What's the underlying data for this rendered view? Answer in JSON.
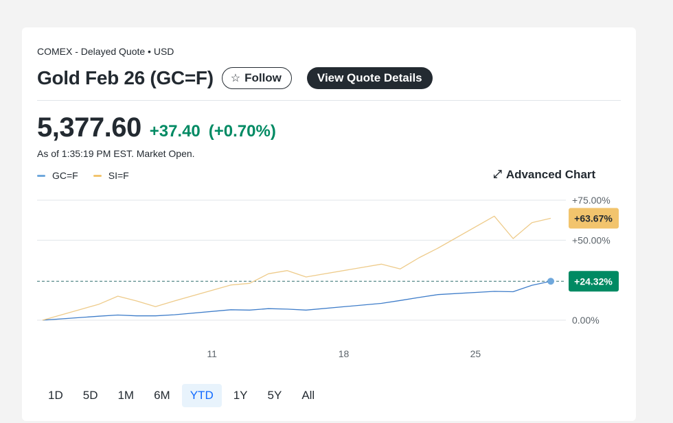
{
  "header": {
    "exchange": "COMEX - Delayed Quote • USD",
    "title": "Gold Feb 26 (GC=F)",
    "follow_label": "Follow",
    "quote_details_label": "View Quote Details"
  },
  "quote": {
    "price": "5,377.60",
    "change": "+37.40",
    "change_pct": "(+0.70%)",
    "as_of": "As of 1:35:19 PM EST. Market Open."
  },
  "advanced_chart_label": "Advanced Chart",
  "ranges": [
    {
      "label": "1D",
      "active": false
    },
    {
      "label": "5D",
      "active": false
    },
    {
      "label": "1M",
      "active": false
    },
    {
      "label": "6M",
      "active": false
    },
    {
      "label": "YTD",
      "active": true
    },
    {
      "label": "1Y",
      "active": false
    },
    {
      "label": "5Y",
      "active": false
    },
    {
      "label": "All",
      "active": false
    }
  ],
  "colors": {
    "gc": "#6fa8dc",
    "gc_line": "#3d7cc9",
    "si": "#f2c46d",
    "si_line": "#eecb8a",
    "positive": "#008a63"
  },
  "chart_data": {
    "type": "line",
    "x": [
      "2026-01-02",
      "2026-01-05",
      "2026-01-06",
      "2026-01-07",
      "2026-01-08",
      "2026-01-09",
      "2026-01-12",
      "2026-01-13",
      "2026-01-14",
      "2026-01-15",
      "2026-01-16",
      "2026-01-20",
      "2026-01-21",
      "2026-01-22",
      "2026-01-23",
      "2026-01-26",
      "2026-01-27",
      "2026-01-28",
      "2026-01-29"
    ],
    "series": [
      {
        "name": "GC=F",
        "values": [
          0.0,
          2.5,
          3.2,
          2.7,
          2.7,
          3.4,
          6.5,
          6.3,
          7.2,
          6.9,
          6.3,
          10.5,
          12.3,
          14.2,
          16.0,
          18.0,
          17.8,
          21.8,
          24.32
        ]
      },
      {
        "name": "SI=F",
        "values": [
          0.0,
          10.0,
          15.0,
          12.0,
          8.5,
          12.0,
          22.0,
          23.0,
          29.0,
          31.0,
          27.0,
          35.0,
          32.0,
          39.0,
          45.0,
          65.0,
          51.0,
          61.0,
          63.67
        ]
      }
    ],
    "previous_close_pct": 24.32,
    "y_ticks": [
      "+75.00%",
      "+50.00%",
      "0.00%"
    ],
    "y_tick_values": [
      75,
      50,
      0
    ],
    "x_ticks": [
      {
        "date": "2026-01-11",
        "label": "11"
      },
      {
        "date": "2026-01-18",
        "label": "18"
      },
      {
        "date": "2026-01-25",
        "label": "25"
      }
    ],
    "end_labels": [
      {
        "series": "SI=F",
        "label": "+63.67%"
      },
      {
        "series": "GC=F",
        "label": "+24.32%"
      }
    ],
    "ylim": [
      0,
      75
    ],
    "grid": true,
    "legend": "top-left"
  }
}
